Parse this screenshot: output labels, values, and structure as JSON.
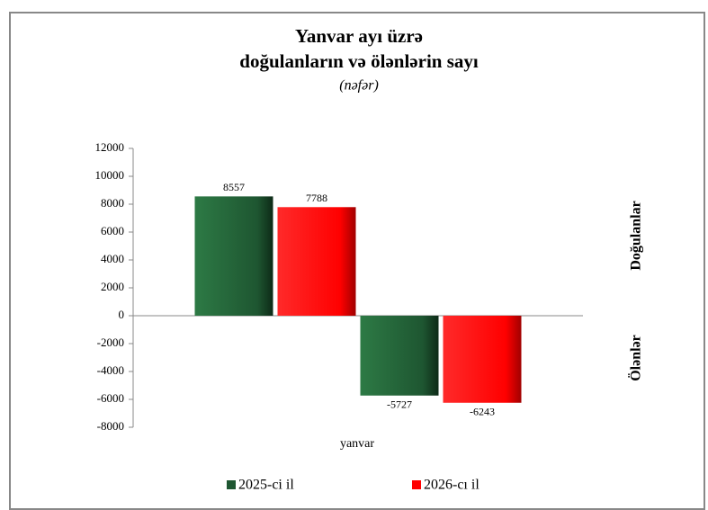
{
  "chart_data": {
    "type": "bar",
    "title": "Yanvar ayı üzrə",
    "subtitle": "doğulanların  və ölənlərin  sayı",
    "unit": "(nəfər)",
    "x_label": "yanvar",
    "categories": [
      null,
      null
    ],
    "annotations": [
      "Doğulanlar",
      "Ölənlər"
    ],
    "series": [
      {
        "name": "2025-ci il",
        "color": "#1e5631",
        "values": [
          8557,
          -5727
        ]
      },
      {
        "name": "2026-cı il",
        "color": "#ff0000",
        "values": [
          7788,
          -6243
        ]
      }
    ],
    "ylim": [
      -8000,
      12000
    ],
    "yticks": [
      -8000,
      -6000,
      -4000,
      -2000,
      0,
      2000,
      4000,
      6000,
      8000,
      10000,
      12000
    ],
    "legend": "bottom"
  }
}
